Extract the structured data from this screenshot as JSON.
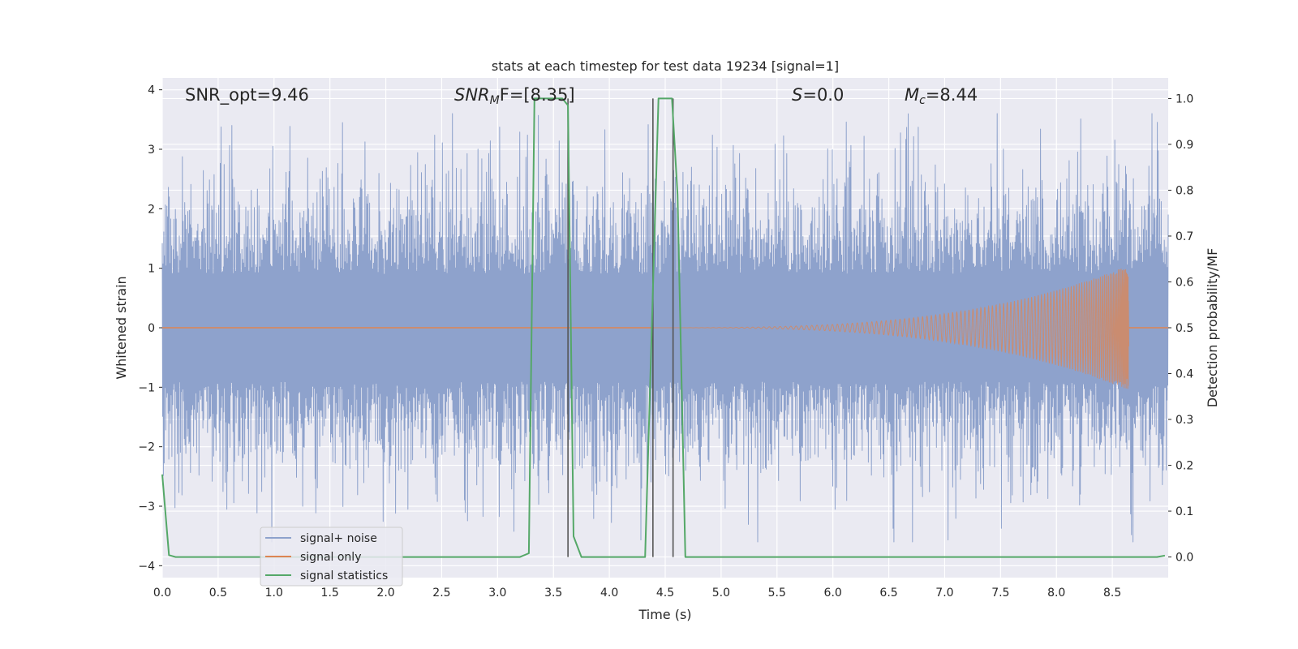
{
  "chart_data": {
    "type": "line",
    "title": "stats at each timestep for test data 19234 [signal=1]",
    "xlabel": "Time (s)",
    "ylabel_left": "Whitened strain",
    "ylabel_right": "Detection probability/MF",
    "xlim": [
      0.0,
      9.0
    ],
    "ylim_left": [
      -4.2,
      4.2
    ],
    "ylim_right": [
      -0.045,
      1.045
    ],
    "x_ticks": [
      "0.0",
      "0.5",
      "1.0",
      "1.5",
      "2.0",
      "2.5",
      "3.0",
      "3.5",
      "4.0",
      "4.5",
      "5.0",
      "5.5",
      "6.0",
      "6.5",
      "7.0",
      "7.5",
      "8.0",
      "8.5"
    ],
    "y_ticks_left": [
      "4",
      "3",
      "2",
      "1",
      "0",
      "−1",
      "−2",
      "−3",
      "−4"
    ],
    "y_ticks_right": [
      "1.0",
      "0.9",
      "0.8",
      "0.7",
      "0.6",
      "0.5",
      "0.4",
      "0.3",
      "0.2",
      "0.1",
      "0.0"
    ],
    "annotations": {
      "snr_opt": "SNR_opt=9.46",
      "snr_mf_main": "SNR",
      "snr_mf_sub": "M",
      "snr_mf_rest": "F=[8.35]",
      "s_main": "S",
      "s_rest": "=0.0",
      "mc_main": "M",
      "mc_sub": "c",
      "mc_rest": "=8.44"
    },
    "legend": {
      "position": "lower-left",
      "entries": [
        "signal+ noise",
        "signal only",
        "signal statistics"
      ]
    },
    "series": [
      {
        "name": "signal+ noise",
        "color": "#8ea2cc",
        "axis": "left",
        "description": "whitened strain noise, amplitude ~ +/-3, spanning 0.0 to 9.0 s"
      },
      {
        "name": "signal only",
        "color": "#dd8452",
        "axis": "left",
        "chirp": {
          "t_start": 4.4,
          "t_merge": 8.65,
          "peak_amplitude": 1.05
        }
      },
      {
        "name": "signal statistics",
        "color": "#55a868",
        "axis": "right",
        "x": [
          0.0,
          0.06,
          0.12,
          3.2,
          3.28,
          3.33,
          3.58,
          3.63,
          3.68,
          3.75,
          4.32,
          4.44,
          4.56,
          4.61,
          4.68,
          8.9,
          8.97
        ],
        "y": [
          0.18,
          0.004,
          0.0,
          0.0,
          0.008,
          1.0,
          1.0,
          0.985,
          0.045,
          0.0,
          0.0,
          1.0,
          1.0,
          0.79,
          0.0,
          0.0,
          0.003
        ]
      }
    ],
    "vertical_markers": [
      3.63,
      4.39,
      4.57
    ],
    "colors": {
      "axes_bg": "#eaeaf2",
      "grid": "#ffffff",
      "text": "#262626",
      "marker": "#555555"
    }
  }
}
